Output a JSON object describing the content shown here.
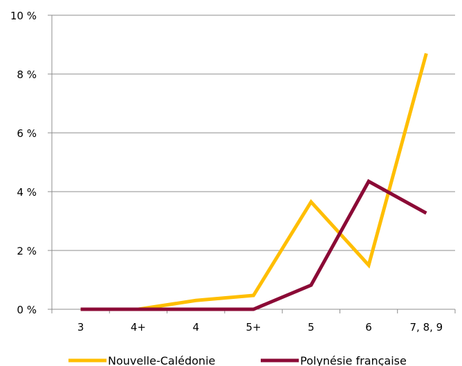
{
  "chart_data": {
    "type": "line",
    "categories": [
      "3",
      "4+",
      "4",
      "5+",
      "5",
      "6",
      "7, 8, 9"
    ],
    "series": [
      {
        "name": "Nouvelle-Calédonie",
        "color": "#FFBE00",
        "values": [
          0,
          0,
          0.3,
          0.47,
          3.65,
          1.5,
          8.7
        ]
      },
      {
        "name": "Polynésie française",
        "color": "#8B0A36",
        "values": [
          0,
          0,
          0,
          0,
          0.82,
          4.35,
          3.27
        ]
      }
    ],
    "y_ticks": [
      "0 %",
      "2 %",
      "4 %",
      "6 %",
      "8 %",
      "10 %"
    ],
    "ylim": [
      0,
      10
    ],
    "grid": true,
    "legend_position": "bottom"
  }
}
